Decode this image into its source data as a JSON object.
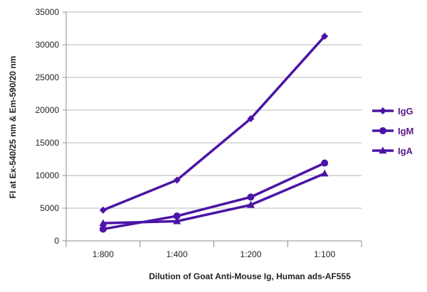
{
  "chart_data": {
    "type": "line",
    "title": "",
    "xlabel": "Dilution of Goat Anti-Mouse Ig, Human ads-AF555",
    "ylabel": "FI at Ex-540/25 nm & Em-590/20 nm",
    "categories": [
      "1:800",
      "1:400",
      "1:200",
      "1:100"
    ],
    "ylim": [
      0,
      35000
    ],
    "yticks": [
      0,
      5000,
      10000,
      15000,
      20000,
      25000,
      30000,
      35000
    ],
    "grid": "horizontal",
    "legend_position": "right",
    "series": [
      {
        "name": "IgG",
        "marker": "diamond",
        "color": "#4b14a5",
        "values": [
          4700,
          9300,
          18700,
          31300
        ]
      },
      {
        "name": "IgM",
        "marker": "circle",
        "color": "#4b14a5",
        "values": [
          1800,
          3800,
          6700,
          11900
        ]
      },
      {
        "name": "IgA",
        "marker": "triangle",
        "color": "#4b14a5",
        "values": [
          2700,
          3000,
          5500,
          10300
        ]
      }
    ]
  }
}
